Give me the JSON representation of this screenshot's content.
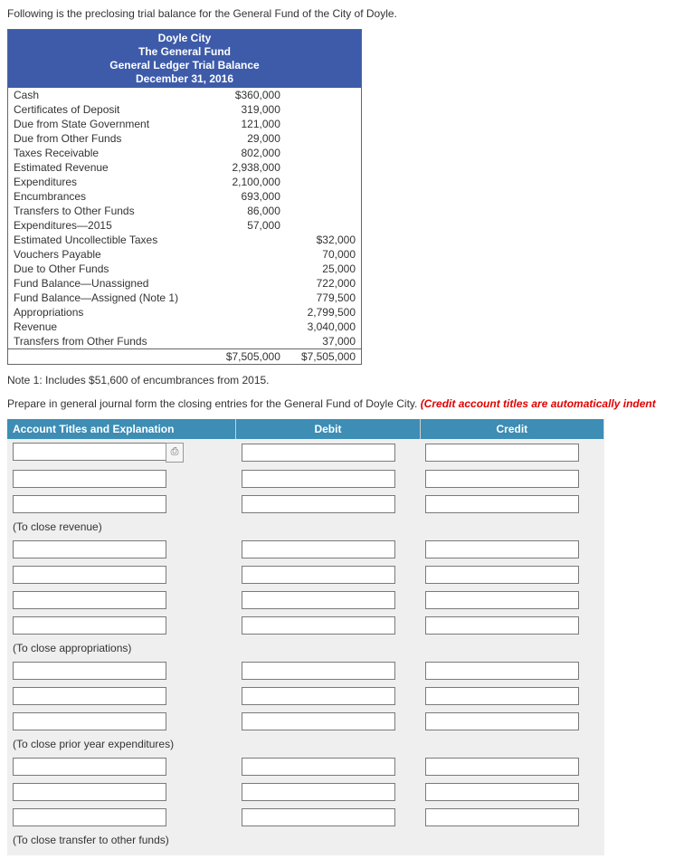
{
  "intro": "Following is the preclosing trial balance for the General Fund of the City of Doyle.",
  "tb_header": {
    "line1": "Doyle City",
    "line2": "The General Fund",
    "line3": "General Ledger Trial Balance",
    "line4": "December 31, 2016"
  },
  "tb_rows": [
    {
      "label": "Cash",
      "debit": "$360,000",
      "credit": ""
    },
    {
      "label": "Certificates of Deposit",
      "debit": "319,000",
      "credit": ""
    },
    {
      "label": "Due from State Government",
      "debit": "121,000",
      "credit": ""
    },
    {
      "label": "Due from Other Funds",
      "debit": "29,000",
      "credit": ""
    },
    {
      "label": "Taxes Receivable",
      "debit": "802,000",
      "credit": ""
    },
    {
      "label": "Estimated Revenue",
      "debit": "2,938,000",
      "credit": ""
    },
    {
      "label": "Expenditures",
      "debit": "2,100,000",
      "credit": ""
    },
    {
      "label": "Encumbrances",
      "debit": "693,000",
      "credit": ""
    },
    {
      "label": "Transfers to Other Funds",
      "debit": "86,000",
      "credit": ""
    },
    {
      "label": "Expenditures—2015",
      "debit": "57,000",
      "credit": ""
    },
    {
      "label": "Estimated Uncollectible Taxes",
      "debit": "",
      "credit": "$32,000"
    },
    {
      "label": "Vouchers Payable",
      "debit": "",
      "credit": "70,000"
    },
    {
      "label": "Due to Other Funds",
      "debit": "",
      "credit": "25,000"
    },
    {
      "label": "Fund Balance—Unassigned",
      "debit": "",
      "credit": "722,000"
    },
    {
      "label": "Fund Balance—Assigned (Note 1)",
      "debit": "",
      "credit": "779,500"
    },
    {
      "label": "Appropriations",
      "debit": "",
      "credit": "2,799,500"
    },
    {
      "label": "Revenue",
      "debit": "",
      "credit": "3,040,000"
    },
    {
      "label": "Transfers from Other Funds",
      "debit": "",
      "credit": "37,000"
    }
  ],
  "tb_totals": {
    "debit": "$7,505,000",
    "credit": "$7,505,000"
  },
  "note": "Note 1: Includes $51,600 of encumbrances from 2015.",
  "prepare_prefix": "Prepare in general journal form the closing entries for the General Fund of Doyle City. ",
  "prepare_red": "(Credit account titles are automatically indent",
  "journal_header": {
    "acct": "Account Titles and Explanation",
    "debit": "Debit",
    "credit": "Credit"
  },
  "sections": [
    {
      "rows": 3,
      "first_has_lookup": true,
      "caption": "(To close revenue)"
    },
    {
      "rows": 4,
      "first_has_lookup": false,
      "caption": "(To close appropriations)"
    },
    {
      "rows": 3,
      "first_has_lookup": false,
      "caption": "(To close prior year expenditures)"
    },
    {
      "rows": 3,
      "first_has_lookup": false,
      "caption": "(To close transfer to other funds)"
    }
  ],
  "lookup_glyph": "⎙"
}
